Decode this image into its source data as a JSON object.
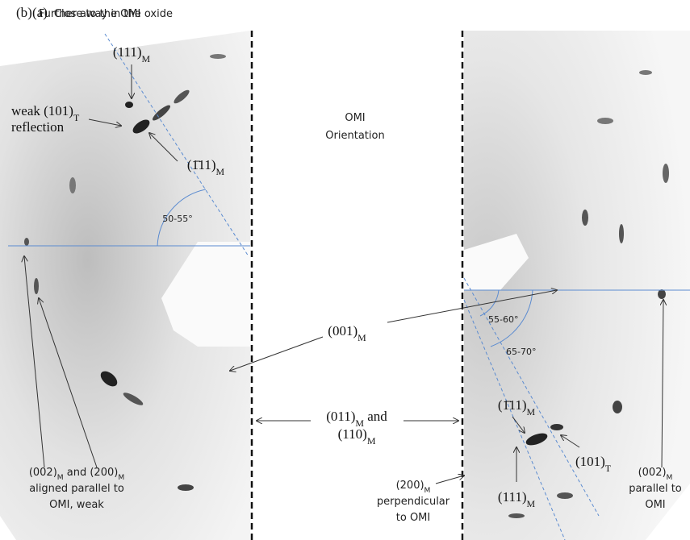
{
  "panels": [
    {
      "letter": "(a)",
      "title": "Close to the OMI"
    },
    {
      "letter": "(b)",
      "title": "Further away in the oxide"
    }
  ],
  "labels": [
    {
      "lines": [
        [
          {
            "text": "weak (101)",
            "sub": "T"
          }
        ],
        [
          {
            "text": "reflection"
          }
        ]
      ]
    },
    {
      "lines": [
        [
          {
            "text": "(111)",
            "sub": "M"
          }
        ]
      ]
    },
    {
      "lines": [
        [
          {
            "text": "(1̄11)",
            "sub": "M"
          }
        ]
      ]
    },
    {
      "lines": [
        [
          {
            "text": "50-55°"
          }
        ]
      ]
    },
    {
      "lines": [
        [
          {
            "text": "OMI"
          }
        ],
        [
          {
            "text": "Orientation"
          }
        ]
      ]
    },
    {
      "lines": [
        [
          {
            "text": "(001)",
            "sub": "M"
          }
        ]
      ]
    },
    {
      "lines": [
        [
          {
            "text": "(011)",
            "sub": "M"
          },
          {
            "text": " and"
          }
        ],
        [
          {
            "text": "(110)",
            "sub": "M"
          }
        ]
      ]
    },
    {
      "lines": [
        [
          {
            "text": "(002)",
            "sub": "M"
          },
          {
            "text": " and (200)",
            "sub": "M"
          }
        ],
        [
          {
            "text": "aligned parallel to"
          }
        ],
        [
          {
            "text": "OMI, weak"
          }
        ]
      ]
    },
    {
      "lines": [
        [
          {
            "text": "55-60°"
          }
        ]
      ]
    },
    {
      "lines": [
        [
          {
            "text": "65-70°"
          }
        ]
      ]
    },
    {
      "lines": [
        [
          {
            "text": "(1̄11)",
            "sub": "M"
          }
        ]
      ]
    },
    {
      "lines": [
        [
          {
            "text": "(101)",
            "sub": "T"
          }
        ]
      ]
    },
    {
      "lines": [
        [
          {
            "text": "(111)",
            "sub": "M"
          }
        ]
      ]
    },
    {
      "lines": [
        [
          {
            "text": "(200)",
            "sub": "M"
          }
        ],
        [
          {
            "text": "perpendicular"
          }
        ],
        [
          {
            "text": "to OMI"
          }
        ]
      ]
    },
    {
      "lines": [
        [
          {
            "text": "(002)",
            "sub": "M"
          }
        ],
        [
          {
            "text": "parallel to"
          }
        ],
        [
          {
            "text": "OMI"
          }
        ]
      ]
    }
  ]
}
